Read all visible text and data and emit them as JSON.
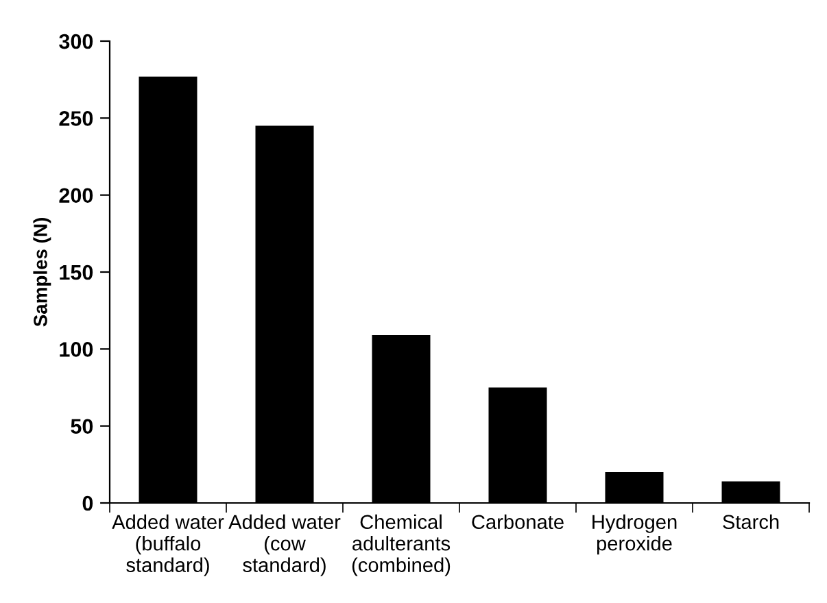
{
  "chart_data": {
    "type": "bar",
    "ylabel": "Samples (N)",
    "categories": [
      "Added water\n(buffalo\nstandard)",
      "Added water\n(cow\nstandard)",
      "Chemical\nadulterants\n(combined)",
      "Carbonate",
      "Hydrogen\nperoxide",
      "Starch"
    ],
    "values": [
      277,
      245,
      109,
      75,
      20,
      14
    ],
    "color": "#000000",
    "ylim": [
      0,
      300
    ],
    "yticks": [
      0,
      50,
      100,
      150,
      200,
      250,
      300
    ],
    "grid": false
  }
}
